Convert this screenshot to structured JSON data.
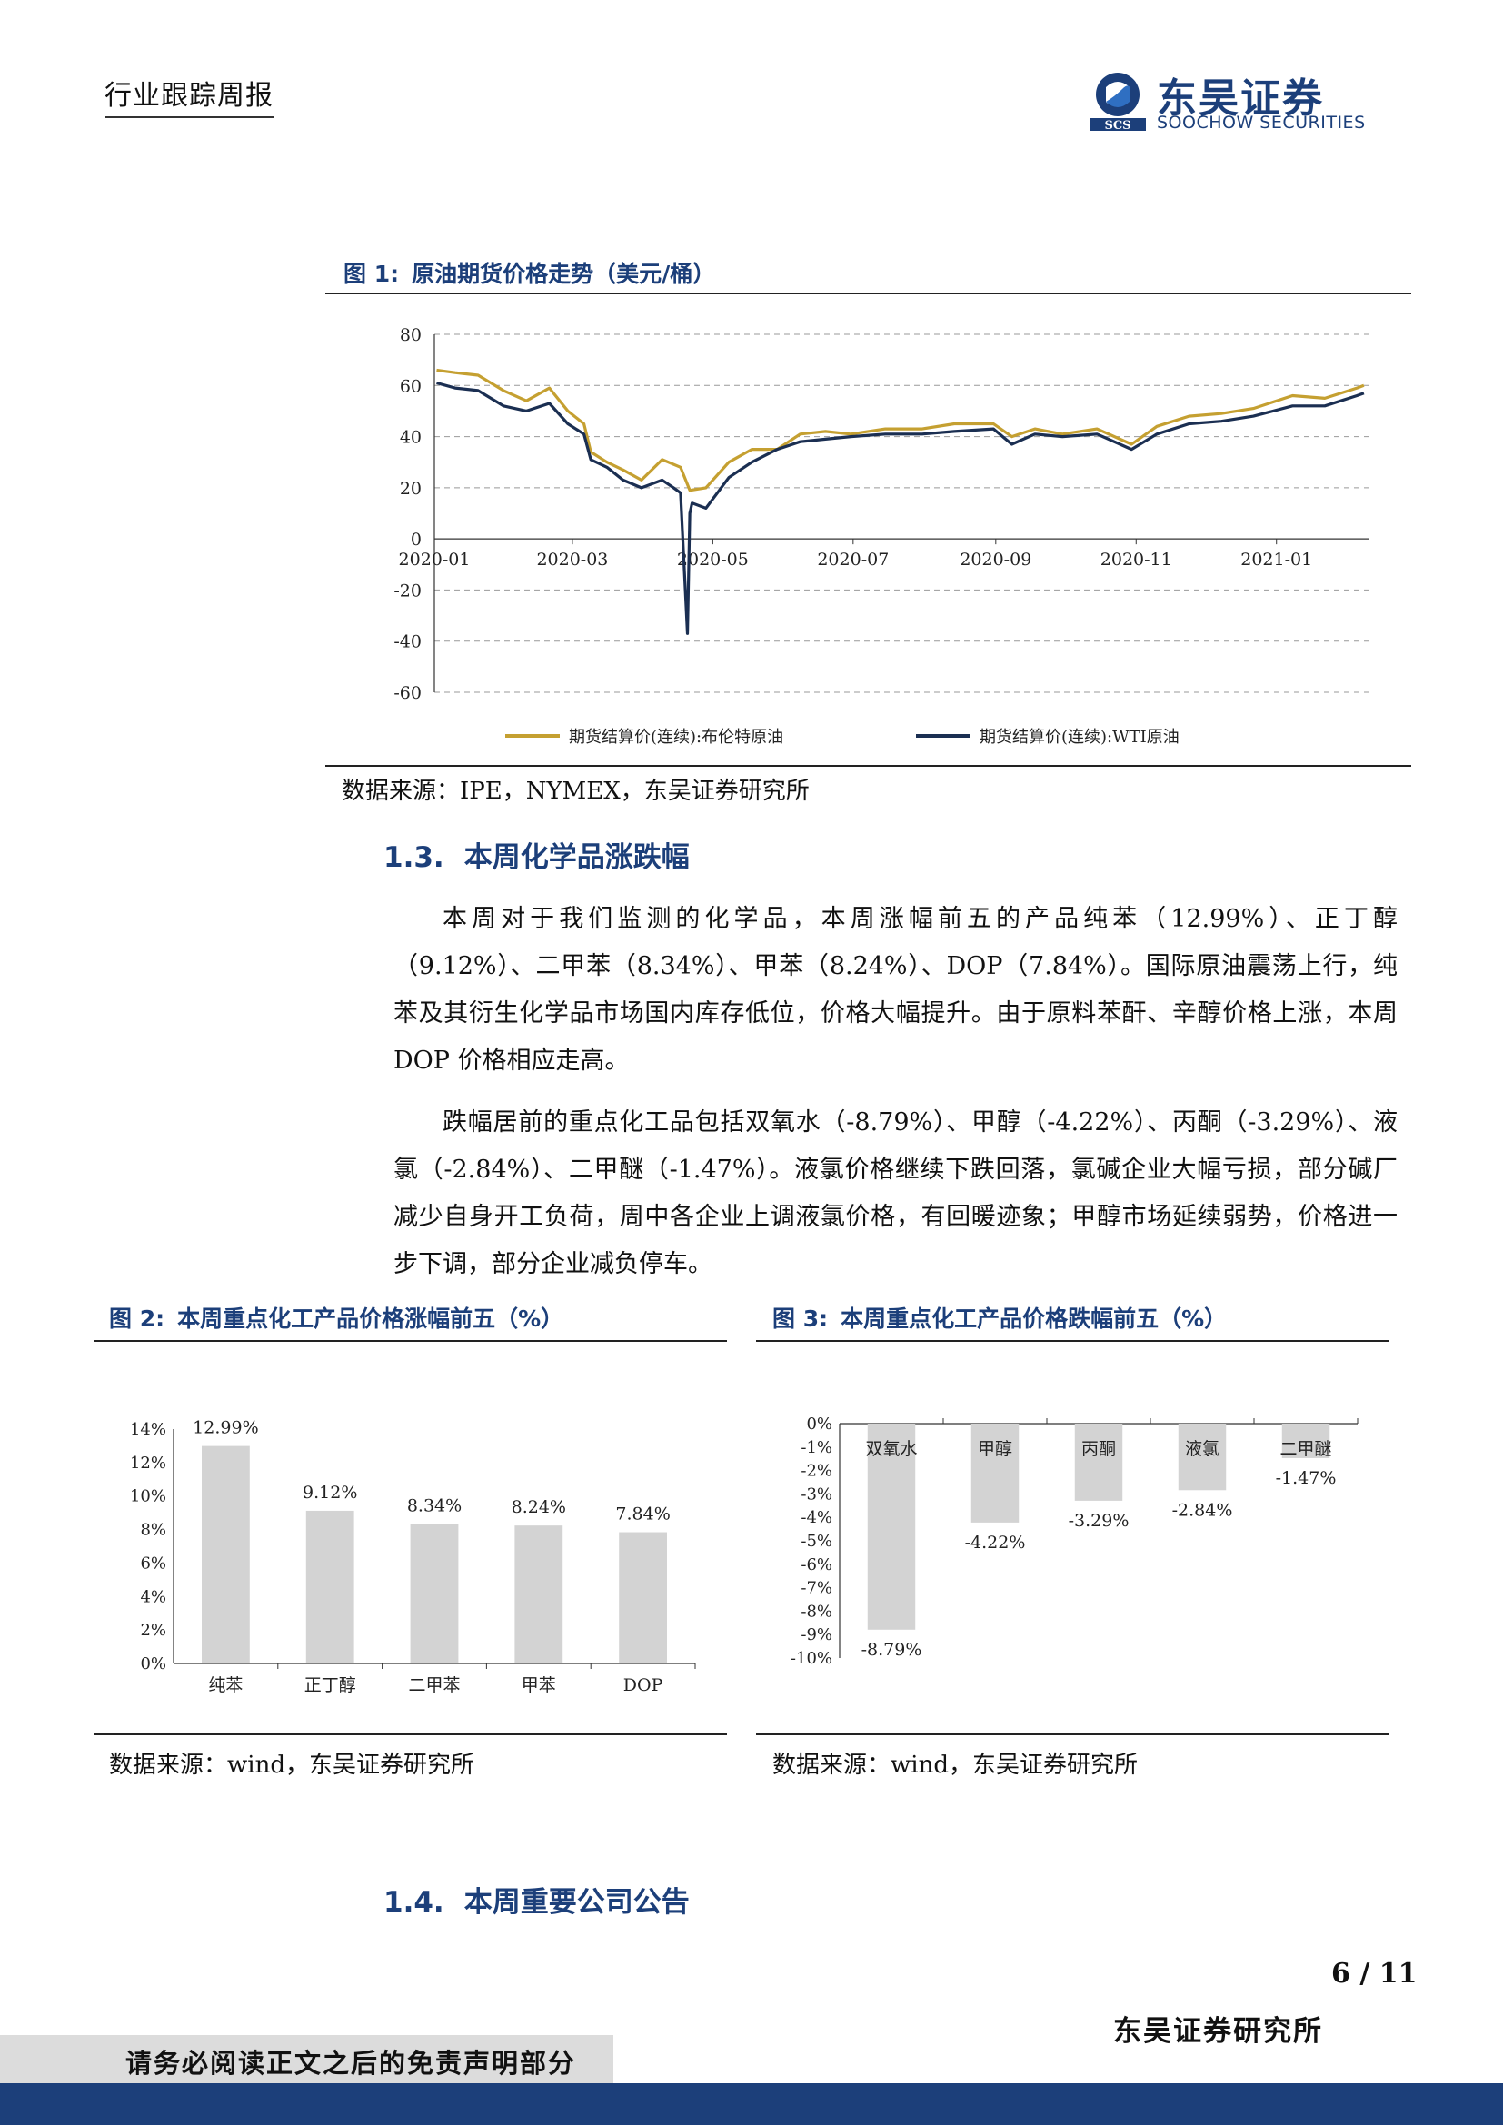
{
  "header": {
    "tag": "行业跟踪周报"
  },
  "logo": {
    "name_cn": "东吴证券",
    "name_en": "SOOCHOW SECURITIES",
    "mark_text": "SCS"
  },
  "figure1": {
    "number": "图 1:",
    "title": "原油期货价格走势（美元/桶）",
    "source": "数据来源：IPE，NYMEX，东吴证券研究所"
  },
  "section13": {
    "number": "1.3.",
    "title": "本周化学品涨跌幅"
  },
  "paragraphs": [
    "本周对于我们监测的化学品，本周涨幅前五的产品纯苯（12.99%）、正丁醇（9.12%）、二甲苯（8.34%）、甲苯（8.24%）、DOP（7.84%）。国际原油震荡上行，纯苯及其衍生化学品市场国内库存低位，价格大幅提升。由于原料苯酐、辛醇价格上涨，本周 DOP 价格相应走高。",
    "跌幅居前的重点化工品包括双氧水（-8.79%）、甲醇（-4.22%）、丙酮（-3.29%）、液氯（-2.84%）、二甲醚（-1.47%）。液氯价格继续下跌回落，氯碱企业大幅亏损，部分碱厂减少自身开工负荷，周中各企业上调液氯价格，有回暖迹象；甲醇市场延续弱势，价格进一步下调，部分企业减负停车。"
  ],
  "figure2": {
    "number": "图 2:",
    "title": "本周重点化工产品价格涨幅前五（%）",
    "source": "数据来源：wind，东吴证券研究所"
  },
  "figure3": {
    "number": "图 3:",
    "title": "本周重点化工产品价格跌幅前五（%）",
    "source": "数据来源：wind，东吴证券研究所"
  },
  "section14": {
    "number": "1.4.",
    "title": "本周重要公司公告"
  },
  "page": {
    "number": "6 / 11"
  },
  "footer": {
    "institute": "东吴证券研究所",
    "disclaimer": "请务必阅读正文之后的免责声明部分"
  },
  "colors": {
    "brand": "#1c3f7a",
    "brent": "#c5a031",
    "wti": "#1b2f52",
    "bar": "#d3d3d3"
  },
  "chart_data": [
    {
      "type": "line",
      "x_ticks": [
        "2020-01",
        "2020-03",
        "2020-05",
        "2020-07",
        "2020-09",
        "2020-11",
        "2021-01"
      ],
      "ylim": [
        -60,
        80
      ],
      "y_ticks": [
        80,
        60,
        40,
        20,
        0,
        -20,
        -40,
        -60
      ],
      "grid": true,
      "legend_position": "bottom",
      "series": [
        {
          "name": "期货结算价(连续):布伦特原油",
          "color": "#c5a031",
          "x": [
            "2020-01-02",
            "2020-01-10",
            "2020-01-20",
            "2020-01-31",
            "2020-02-10",
            "2020-02-20",
            "2020-02-28",
            "2020-03-06",
            "2020-03-09",
            "2020-03-16",
            "2020-03-23",
            "2020-03-31",
            "2020-04-09",
            "2020-04-17",
            "2020-04-21",
            "2020-04-28",
            "2020-05-08",
            "2020-05-18",
            "2020-05-29",
            "2020-06-08",
            "2020-06-19",
            "2020-06-30",
            "2020-07-15",
            "2020-07-31",
            "2020-08-14",
            "2020-08-31",
            "2020-09-08",
            "2020-09-18",
            "2020-09-30",
            "2020-10-15",
            "2020-10-30",
            "2020-11-10",
            "2020-11-24",
            "2020-12-08",
            "2020-12-22",
            "2021-01-08",
            "2021-01-22",
            "2021-02-05",
            "2021-02-08"
          ],
          "y": [
            66,
            65,
            64,
            58,
            54,
            59,
            50,
            45,
            34,
            30,
            27,
            23,
            31,
            28,
            19,
            20,
            30,
            35,
            35,
            41,
            42,
            41,
            43,
            43,
            45,
            45,
            40,
            43,
            41,
            43,
            37,
            44,
            48,
            49,
            51,
            56,
            55,
            59,
            60
          ]
        },
        {
          "name": "期货结算价(连续):WTI原油",
          "color": "#1b2f52",
          "x": [
            "2020-01-02",
            "2020-01-10",
            "2020-01-20",
            "2020-01-31",
            "2020-02-10",
            "2020-02-20",
            "2020-02-28",
            "2020-03-06",
            "2020-03-09",
            "2020-03-16",
            "2020-03-23",
            "2020-03-31",
            "2020-04-09",
            "2020-04-14",
            "2020-04-17",
            "2020-04-20",
            "2020-04-21",
            "2020-04-22",
            "2020-04-28",
            "2020-05-08",
            "2020-05-18",
            "2020-05-29",
            "2020-06-08",
            "2020-06-19",
            "2020-06-30",
            "2020-07-15",
            "2020-07-31",
            "2020-08-14",
            "2020-08-31",
            "2020-09-08",
            "2020-09-18",
            "2020-09-30",
            "2020-10-15",
            "2020-10-30",
            "2020-11-10",
            "2020-11-24",
            "2020-12-08",
            "2020-12-22",
            "2021-01-08",
            "2021-01-22",
            "2021-02-05",
            "2021-02-08"
          ],
          "y": [
            61,
            59,
            58,
            52,
            50,
            53,
            45,
            41,
            31,
            28,
            23,
            20,
            23,
            20,
            18,
            -37,
            10,
            14,
            12,
            24,
            30,
            35,
            38,
            39,
            40,
            41,
            41,
            42,
            43,
            37,
            41,
            40,
            41,
            35,
            41,
            45,
            46,
            48,
            52,
            52,
            56,
            57
          ]
        }
      ]
    },
    {
      "type": "bar",
      "categories": [
        "纯苯",
        "正丁醇",
        "二甲苯",
        "甲苯",
        "DOP"
      ],
      "values": [
        12.99,
        9.12,
        8.34,
        8.24,
        7.84
      ],
      "data_labels": [
        "12.99%",
        "9.12%",
        "8.34%",
        "8.24%",
        "7.84%"
      ],
      "ylim": [
        0,
        14
      ],
      "y_ticks": [
        "14%",
        "12%",
        "10%",
        "8%",
        "6%",
        "4%",
        "2%",
        "0%"
      ]
    },
    {
      "type": "bar",
      "categories": [
        "双氧水",
        "甲醇",
        "丙酮",
        "液氯",
        "二甲醚"
      ],
      "values": [
        -8.79,
        -4.22,
        -3.29,
        -2.84,
        -1.47
      ],
      "data_labels": [
        "-8.79%",
        "-4.22%",
        "-3.29%",
        "-2.84%",
        "-1.47%"
      ],
      "ylim": [
        -10,
        0
      ],
      "y_ticks": [
        "0%",
        "-1%",
        "-2%",
        "-3%",
        "-4%",
        "-5%",
        "-6%",
        "-7%",
        "-8%",
        "-9%",
        "-10%"
      ]
    }
  ]
}
